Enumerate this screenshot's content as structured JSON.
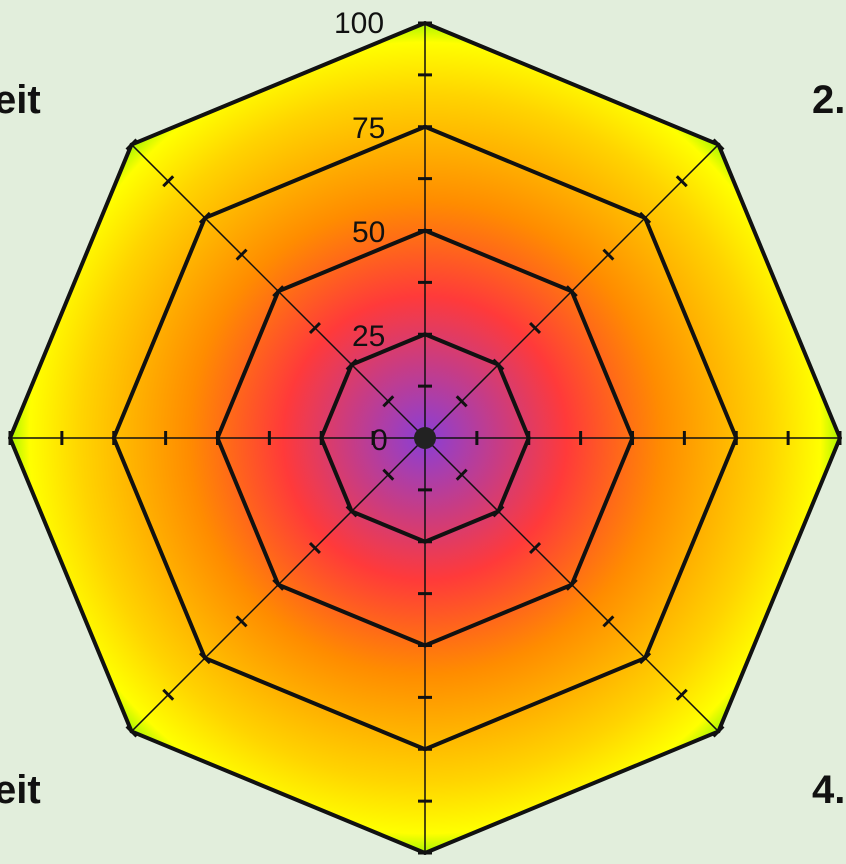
{
  "chart_data": {
    "type": "radar",
    "axes_count": 8,
    "rlim": [
      0,
      100
    ],
    "ring_values": [
      25,
      50,
      75,
      100
    ],
    "tick_labels": [
      "0",
      "25",
      "50",
      "75",
      "100"
    ],
    "minor_tick_step": 12.5,
    "corner_labels": [
      "eit",
      "2.",
      "eit",
      "4."
    ],
    "fill_gradient": [
      "#8a3fd6",
      "#ff3a3a",
      "#ff8c00",
      "#ffd400",
      "#ffff00",
      "#66ee00"
    ],
    "grid_color": "#111111"
  }
}
